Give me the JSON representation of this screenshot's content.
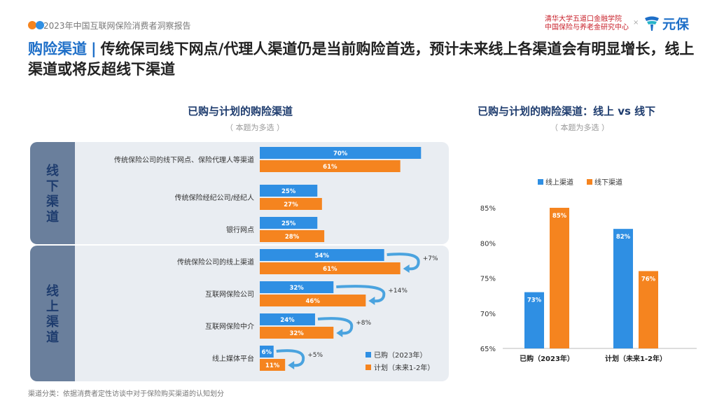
{
  "header": {
    "report_title": "2023年中国互联网保险消费者洞察报告",
    "institution_line1": "清华大学五道口金融学院",
    "institution_line2": "中国保险与养老金研究中心",
    "separator": "×",
    "brand_name": "元保",
    "brand_icon": "yuanbao-logo-icon"
  },
  "headline": {
    "keyword": "购险渠道",
    "separator": "|",
    "text": "传统保司线下网点/代理人渠道仍是当前购险首选，预计未来线上各渠道会有明显增长，线上渠道或将反超线下渠道"
  },
  "footnote": "渠道分类：依据消费者定性访谈中对于保险购买渠道的认知划分",
  "colors": {
    "blue": "#2f8fe3",
    "orange": "#f5841f",
    "group_label_bg": "#6a7f9c",
    "group_bg": "#e9edf2",
    "arrow": "#4aa3df"
  },
  "chart_data": [
    {
      "type": "bar",
      "orientation": "horizontal",
      "title": "已购与计划的购险渠道",
      "subtitle": "（ 本题为多选 ）",
      "groups": [
        {
          "label": "线下渠道",
          "categories": [
            "传统保险公司的线下网点、保险代理人等渠道",
            "传统保险经纪公司/经纪人",
            "银行网点"
          ]
        },
        {
          "label": "线上渠道",
          "categories": [
            "传统保险公司的线上渠道",
            "互联网保险公司",
            "互联网保险中介",
            "线上媒体平台"
          ]
        }
      ],
      "categories": [
        "传统保险公司的线下网点、保险代理人等渠道",
        "传统保险经纪公司/经纪人",
        "银行网点",
        "传统保险公司的线上渠道",
        "互联网保险公司",
        "互联网保险中介",
        "线上媒体平台"
      ],
      "series": [
        {
          "name": "已购（2023年）",
          "values": [
            70,
            25,
            25,
            54,
            32,
            24,
            6
          ],
          "labels": [
            "70%",
            "25%",
            "25%",
            "54%",
            "32%",
            "24%",
            "6%"
          ]
        },
        {
          "name": "计划（未来1-2年）",
          "values": [
            61,
            27,
            28,
            61,
            46,
            32,
            11
          ],
          "labels": [
            "61%",
            "27%",
            "28%",
            "61%",
            "46%",
            "32%",
            "11%"
          ]
        }
      ],
      "annotations": [
        {
          "category": "传统保险公司的线上渠道",
          "text": "+7%"
        },
        {
          "category": "互联网保险公司",
          "text": "+14%"
        },
        {
          "category": "互联网保险中介",
          "text": "+8%"
        },
        {
          "category": "线上媒体平台",
          "text": "+5%"
        }
      ],
      "xlim": [
        0,
        100
      ],
      "legend_position": "bottom-right",
      "grid": false
    },
    {
      "type": "bar",
      "title": "已购与计划的购险渠道：线上 vs 线下",
      "subtitle": "（ 本题为多选 ）",
      "categories": [
        "已购（2023年）",
        "计划（未来1-2年）"
      ],
      "series": [
        {
          "name": "线上渠道",
          "values": [
            73,
            82
          ],
          "labels": [
            "73%",
            "82%"
          ]
        },
        {
          "name": "线下渠道",
          "values": [
            85,
            76
          ],
          "labels": [
            "85%",
            "76%"
          ]
        }
      ],
      "ylim": [
        65,
        85
      ],
      "yticks": [
        65,
        70,
        75,
        80,
        85
      ],
      "ytick_labels": [
        "65%",
        "70%",
        "75%",
        "80%",
        "85%"
      ],
      "legend_position": "top",
      "grid": false
    }
  ]
}
